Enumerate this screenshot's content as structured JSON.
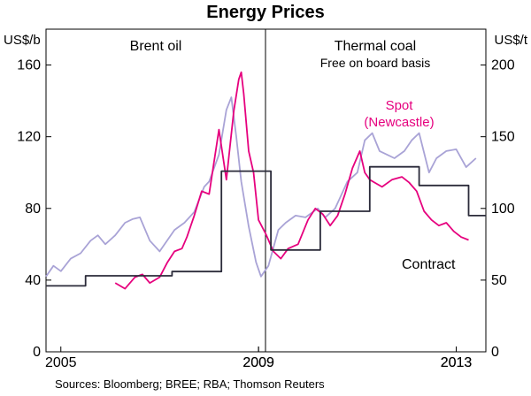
{
  "chart_data": {
    "title": "Energy Prices",
    "source": "Sources: Bloomberg; BREE; RBA; Thomson Reuters",
    "panels": [
      {
        "title": "Brent oil",
        "subtitle": "",
        "type": "line",
        "ylabel": "US$/b",
        "ylabel_side": "left",
        "ylim": [
          0,
          180
        ],
        "yticks": [
          "0",
          "40",
          "80",
          "120",
          "160"
        ],
        "xlim": [
          2004.7,
          2013.6
        ],
        "xticks": [
          "2005",
          "2009",
          "2013"
        ],
        "series": [
          {
            "name": "Brent oil",
            "color": "#a9a3d6",
            "x": [
              2004.7,
              2004.85,
              2005.0,
              2005.2,
              2005.4,
              2005.6,
              2005.75,
              2005.9,
              2006.1,
              2006.3,
              2006.45,
              2006.6,
              2006.8,
              2007.0,
              2007.1,
              2007.3,
              2007.5,
              2007.7,
              2007.9,
              2008.0,
              2008.2,
              2008.35,
              2008.45,
              2008.55,
              2008.65,
              2008.8,
              2008.95,
              2009.05,
              2009.2,
              2009.4,
              2009.55,
              2009.75,
              2009.95,
              2010.2,
              2010.35,
              2010.55,
              2010.8,
              2011.0,
              2011.15,
              2011.3,
              2011.45,
              2011.6,
              2011.75,
              2011.95,
              2012.1,
              2012.25,
              2012.45,
              2012.6,
              2012.8,
              2013.0,
              2013.2,
              2013.4
            ],
            "values": [
              42,
              48,
              45,
              52,
              55,
              62,
              65,
              60,
              65,
              72,
              74,
              75,
              62,
              56,
              60,
              68,
              72,
              78,
              92,
              95,
              110,
              135,
              142,
              120,
              95,
              70,
              50,
              42,
              48,
              68,
              72,
              76,
              75,
              80,
              75,
              80,
              95,
              100,
              118,
              122,
              112,
              110,
              108,
              112,
              118,
              122,
              100,
              108,
              112,
              113,
              103,
              108
            ]
          }
        ]
      },
      {
        "title": "Thermal coal",
        "subtitle": "Free on board basis",
        "type": "line",
        "ylabel": "US$/t",
        "ylabel_side": "right",
        "ylim": [
          0,
          225
        ],
        "yticks": [
          "0",
          "50",
          "100",
          "150",
          "200"
        ],
        "xlim": [
          2004.7,
          2013.6
        ],
        "xticks": [
          "2009",
          "2013"
        ],
        "annotations": [
          "Spot",
          "(Newcastle)",
          "Contract"
        ],
        "series": [
          {
            "name": "Spot (Newcastle)",
            "color": "#e6007e",
            "x": [
              2006.1,
              2006.3,
              2006.5,
              2006.65,
              2006.8,
              2007.0,
              2007.15,
              2007.3,
              2007.45,
              2007.55,
              2007.7,
              2007.85,
              2008.0,
              2008.2,
              2008.35,
              2008.5,
              2008.6,
              2008.65,
              2008.7,
              2008.8,
              2008.9,
              2009.0,
              2009.15,
              2009.3,
              2009.45,
              2009.6,
              2009.8,
              2010.0,
              2010.15,
              2010.3,
              2010.45,
              2010.6,
              2010.75,
              2010.9,
              2011.05,
              2011.15,
              2011.25,
              2011.35,
              2011.5,
              2011.7,
              2011.9,
              2012.05,
              2012.2,
              2012.35,
              2012.5,
              2012.65,
              2012.8,
              2012.95,
              2013.1,
              2013.25
            ],
            "values": [
              48,
              44,
              52,
              54,
              48,
              52,
              62,
              70,
              72,
              80,
              95,
              112,
              110,
              155,
              120,
              168,
              190,
              195,
              180,
              140,
              125,
              92,
              82,
              70,
              65,
              72,
              75,
              92,
              100,
              96,
              88,
              95,
              110,
              128,
              140,
              125,
              120,
              118,
              115,
              120,
              122,
              118,
              112,
              98,
              92,
              88,
              90,
              84,
              80,
              78
            ]
          },
          {
            "name": "Contract",
            "color": "#2b2b3a",
            "step": true,
            "x": [
              2004.7,
              2005.5,
              2006.25,
              2007.25,
              2008.25,
              2009.25,
              2010.25,
              2011.25,
              2012.25,
              2013.25,
              2013.6
            ],
            "values": [
              46,
              53,
              53,
              56,
              126,
              71,
              98,
              129,
              116,
              95,
              95
            ]
          }
        ]
      }
    ]
  }
}
